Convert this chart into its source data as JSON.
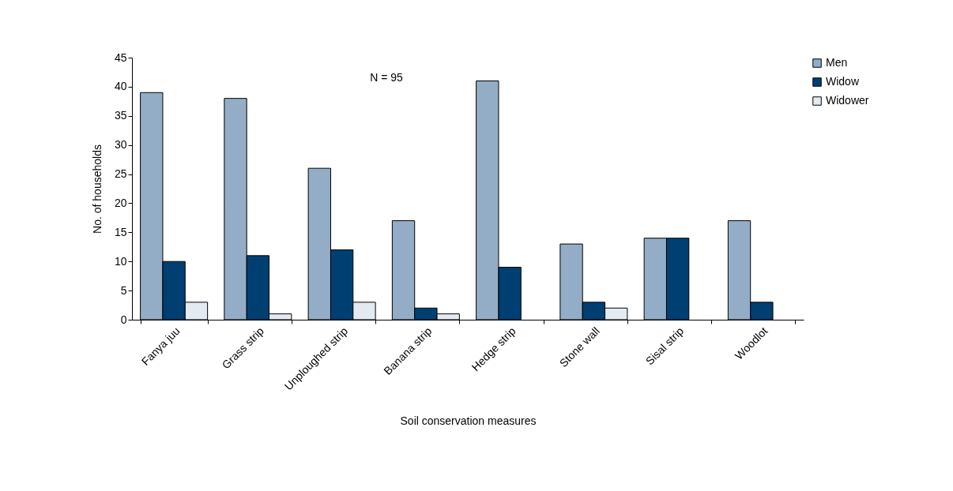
{
  "chart_data": {
    "type": "bar",
    "xlabel": "Soil conservation measures",
    "ylabel": "No. of households",
    "categories": [
      "Fanya juu",
      "Grass strip",
      "Unploughed strip",
      "Banana strip",
      "Hedge strip",
      "Stone wall",
      "Sisal strip",
      "Woodlot"
    ],
    "series": [
      {
        "name": "Men",
        "color": "#94adc6",
        "values": [
          39,
          38,
          26,
          17,
          41,
          13,
          14,
          17
        ]
      },
      {
        "name": "Widow",
        "color": "#003f72",
        "values": [
          10,
          11,
          12,
          2,
          9,
          3,
          14,
          3
        ]
      },
      {
        "name": "Widower",
        "color": "#e4eaf1",
        "values": [
          3,
          1,
          3,
          1,
          null,
          2,
          null,
          null
        ]
      }
    ],
    "ylim": [
      0,
      45
    ],
    "yticks": [
      0,
      5,
      10,
      15,
      20,
      25,
      30,
      35,
      40,
      45
    ],
    "grid": false,
    "legend": "right",
    "annotations": [
      "N = 95"
    ]
  }
}
